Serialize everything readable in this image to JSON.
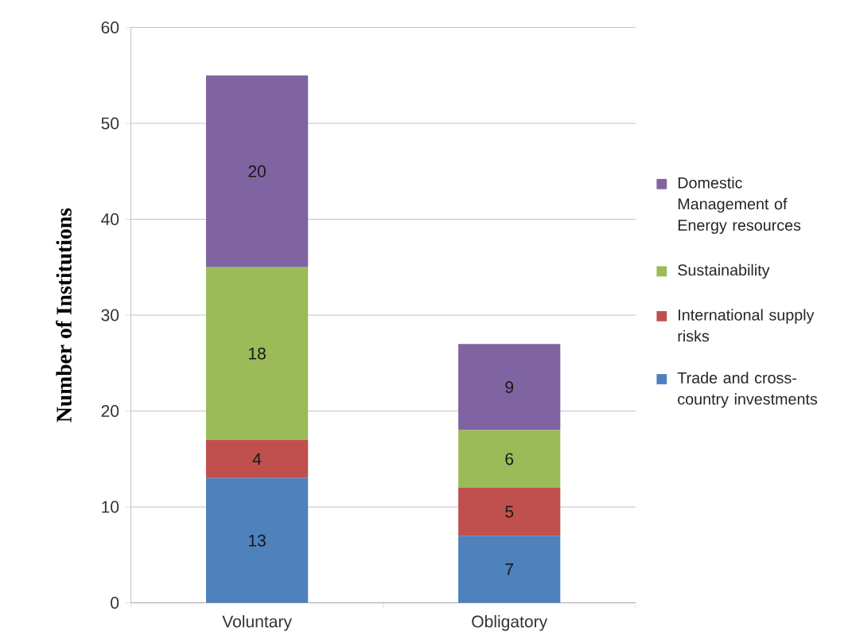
{
  "chart_data": {
    "type": "bar",
    "stacked": true,
    "ylabel": "Number of Institutions",
    "categories": [
      "Voluntary",
      "Obligatory"
    ],
    "series": [
      {
        "name": "Trade and cross-country investments",
        "color": "#4f81bd",
        "values": [
          13,
          7
        ]
      },
      {
        "name": "International supply risks",
        "color": "#c0504d",
        "values": [
          4,
          5
        ]
      },
      {
        "name": "Sustainability",
        "color": "#9bbb59",
        "values": [
          18,
          6
        ]
      },
      {
        "name": "Domestic Management of Energy resources",
        "color": "#8064a2",
        "values": [
          20,
          9
        ]
      }
    ],
    "ylim": [
      0,
      60
    ],
    "yticks": [
      0,
      10,
      20,
      30,
      40,
      50,
      60
    ],
    "grid": "y",
    "legend": "right",
    "data_labels": true
  }
}
